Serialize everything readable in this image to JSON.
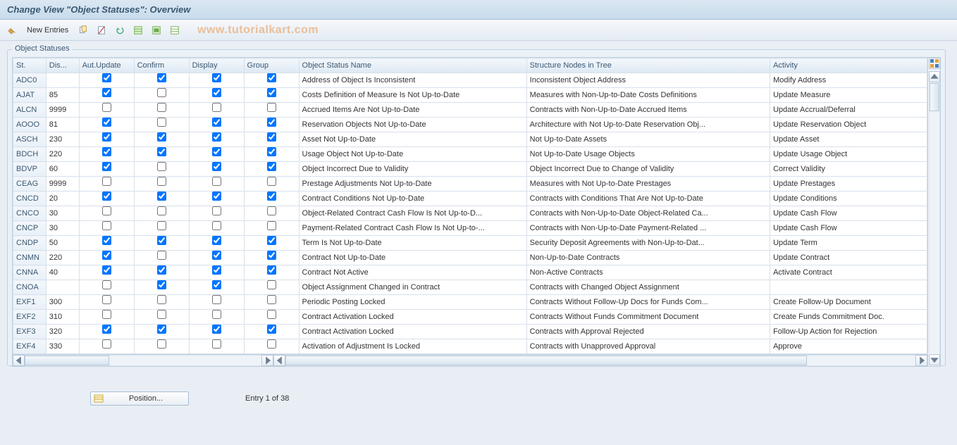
{
  "titlebar": {
    "title": "Change View \"Object Statuses\": Overview"
  },
  "toolbar": {
    "new_entries_label": "New Entries"
  },
  "watermark": "www.tutorialkart.com",
  "groupbox_label": "Object Statuses",
  "columns": {
    "st": "St.",
    "dis": "Dis...",
    "aut_update": "Aut.Update",
    "confirm": "Confirm",
    "display": "Display",
    "group": "Group",
    "object_status_name": "Object Status Name",
    "structure_nodes": "Structure Nodes in Tree",
    "activity": "Activity"
  },
  "column_widths": {
    "st": 42,
    "dis": 42,
    "aut_update": 70,
    "confirm": 70,
    "display": 70,
    "group": 70,
    "object_status_name": 290,
    "structure_nodes": 310,
    "activity": 200
  },
  "rows": [
    {
      "st": "ADC0",
      "dis": "",
      "aut": true,
      "conf": true,
      "disp": true,
      "grp": true,
      "name": "Address of Object Is Inconsistent",
      "nodes": "Inconsistent Object Address",
      "act": "Modify Address"
    },
    {
      "st": "AJAT",
      "dis": "85",
      "aut": true,
      "conf": false,
      "disp": true,
      "grp": true,
      "name": "Costs Definition of Measure Is Not Up-to-Date",
      "nodes": "Measures with Non-Up-to-Date Costs Definitions",
      "act": "Update Measure"
    },
    {
      "st": "ALCN",
      "dis": "9999",
      "aut": false,
      "conf": false,
      "disp": false,
      "grp": false,
      "name": "Accrued Items Are Not Up-to-Date",
      "nodes": "Contracts with Non-Up-to-Date Accrued Items",
      "act": "Update Accrual/Deferral"
    },
    {
      "st": "AOOO",
      "dis": "81",
      "aut": true,
      "conf": false,
      "disp": true,
      "grp": true,
      "name": "Reservation Objects Not Up-to-Date",
      "nodes": "Architecture with Not Up-to-Date Reservation Obj...",
      "act": "Update Reservation Object"
    },
    {
      "st": "ASCH",
      "dis": "230",
      "aut": true,
      "conf": true,
      "disp": true,
      "grp": true,
      "name": "Asset Not Up-to-Date",
      "nodes": "Not Up-to-Date Assets",
      "act": "Update Asset"
    },
    {
      "st": "BDCH",
      "dis": "220",
      "aut": true,
      "conf": true,
      "disp": true,
      "grp": true,
      "name": "Usage Object Not Up-to-Date",
      "nodes": "Not Up-to-Date Usage Objects",
      "act": "Update Usage Object"
    },
    {
      "st": "BDVP",
      "dis": "60",
      "aut": true,
      "conf": false,
      "disp": true,
      "grp": true,
      "name": "Object Incorrect Due to Validity",
      "nodes": "Object Incorrect Due to Change of Validity",
      "act": "Correct Validity"
    },
    {
      "st": "CEAG",
      "dis": "9999",
      "aut": false,
      "conf": false,
      "disp": false,
      "grp": false,
      "name": "Prestage Adjustments Not Up-to-Date",
      "nodes": "Measures with Not Up-to-Date Prestages",
      "act": "Update Prestages"
    },
    {
      "st": "CNCD",
      "dis": "20",
      "aut": true,
      "conf": true,
      "disp": true,
      "grp": true,
      "name": "Contract Conditions Not Up-to-Date",
      "nodes": "Contracts with Conditions That Are Not Up-to-Date",
      "act": "Update Conditions"
    },
    {
      "st": "CNCO",
      "dis": "30",
      "aut": false,
      "conf": false,
      "disp": false,
      "grp": false,
      "name": "Object-Related Contract Cash Flow Is Not Up-to-D...",
      "nodes": "Contracts with Non-Up-to-Date Object-Related Ca...",
      "act": "Update Cash Flow"
    },
    {
      "st": "CNCP",
      "dis": "30",
      "aut": false,
      "conf": false,
      "disp": false,
      "grp": false,
      "name": "Payment-Related Contract Cash Flow Is Not Up-to-...",
      "nodes": "Contracts with Non-Up-to-Date Payment-Related ...",
      "act": "Update Cash Flow"
    },
    {
      "st": "CNDP",
      "dis": "50",
      "aut": true,
      "conf": true,
      "disp": true,
      "grp": true,
      "name": "Term Is Not Up-to-Date",
      "nodes": "Security Deposit Agreements with Non-Up-to-Dat...",
      "act": "Update Term"
    },
    {
      "st": "CNMN",
      "dis": "220",
      "aut": true,
      "conf": false,
      "disp": true,
      "grp": true,
      "name": "Contract Not Up-to-Date",
      "nodes": "Non-Up-to-Date Contracts",
      "act": "Update Contract"
    },
    {
      "st": "CNNA",
      "dis": "40",
      "aut": true,
      "conf": true,
      "disp": true,
      "grp": true,
      "name": "Contract Not Active",
      "nodes": "Non-Active Contracts",
      "act": "Activate Contract"
    },
    {
      "st": "CNOA",
      "dis": "",
      "aut": false,
      "conf": true,
      "disp": true,
      "grp": false,
      "name": "Object Assignment Changed in Contract",
      "nodes": "Contracts with Changed Object Assignment",
      "act": ""
    },
    {
      "st": "EXF1",
      "dis": "300",
      "aut": false,
      "conf": false,
      "disp": false,
      "grp": false,
      "name": "Periodic Posting Locked",
      "nodes": "Contracts Without Follow-Up Docs for Funds Com...",
      "act": "Create Follow-Up Document"
    },
    {
      "st": "EXF2",
      "dis": "310",
      "aut": false,
      "conf": false,
      "disp": false,
      "grp": false,
      "name": "Contract Activation Locked",
      "nodes": "Contracts Without Funds Commitment Document",
      "act": "Create Funds Commitment Doc."
    },
    {
      "st": "EXF3",
      "dis": "320",
      "aut": true,
      "conf": true,
      "disp": true,
      "grp": true,
      "name": "Contract Activation Locked",
      "nodes": "Contracts with Approval Rejected",
      "act": "Follow-Up Action for Rejection"
    },
    {
      "st": "EXF4",
      "dis": "330",
      "aut": false,
      "conf": false,
      "disp": false,
      "grp": false,
      "name": "Activation of Adjustment Is Locked",
      "nodes": "Contracts with Unapproved Approval",
      "act": "Approve"
    }
  ],
  "footer": {
    "position_label": "Position...",
    "entry_text": "Entry 1 of 38"
  },
  "colors": {
    "accent": "#3b5872",
    "header_grad_top": "#dbe7f2",
    "header_grad_bot": "#c7dcec",
    "border": "#c0d0e0",
    "watermark": "rgba(232,155,86,0.6)"
  }
}
